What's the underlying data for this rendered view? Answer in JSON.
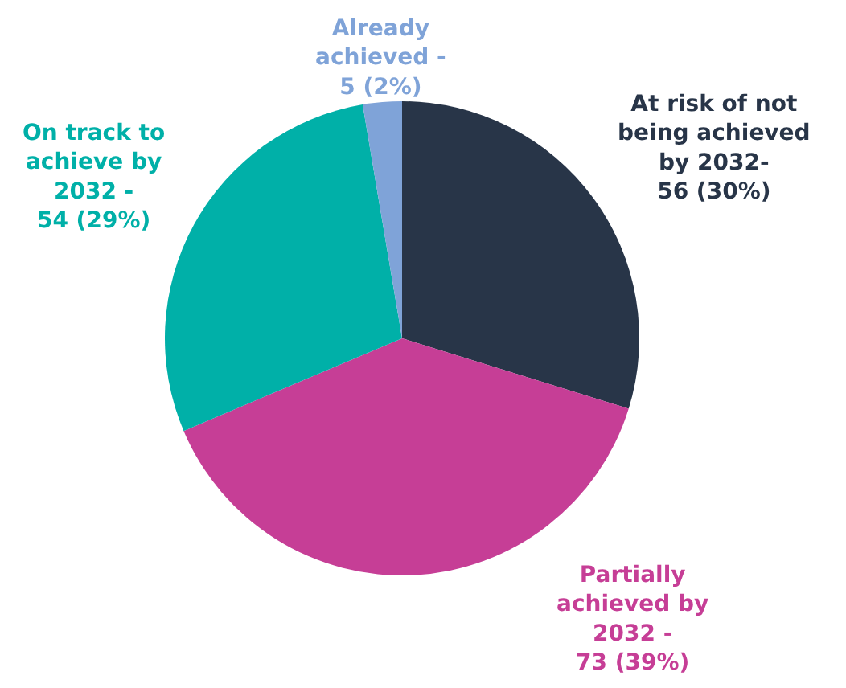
{
  "chart_data": {
    "type": "pie",
    "categories": [
      "At risk of not being achieved by 2032-",
      "Partially achieved by 2032 -",
      "On track to achieve by 2032 -",
      "Already achieved -"
    ],
    "values": [
      56,
      73,
      54,
      5
    ],
    "value_labels": [
      "56 (30%)",
      "73 (39%)",
      "54 (29%)",
      "5 (2%)"
    ],
    "colors": [
      "#283548",
      "#c63e96",
      "#00b0a8",
      "#7fa3d8"
    ],
    "legend": false
  }
}
